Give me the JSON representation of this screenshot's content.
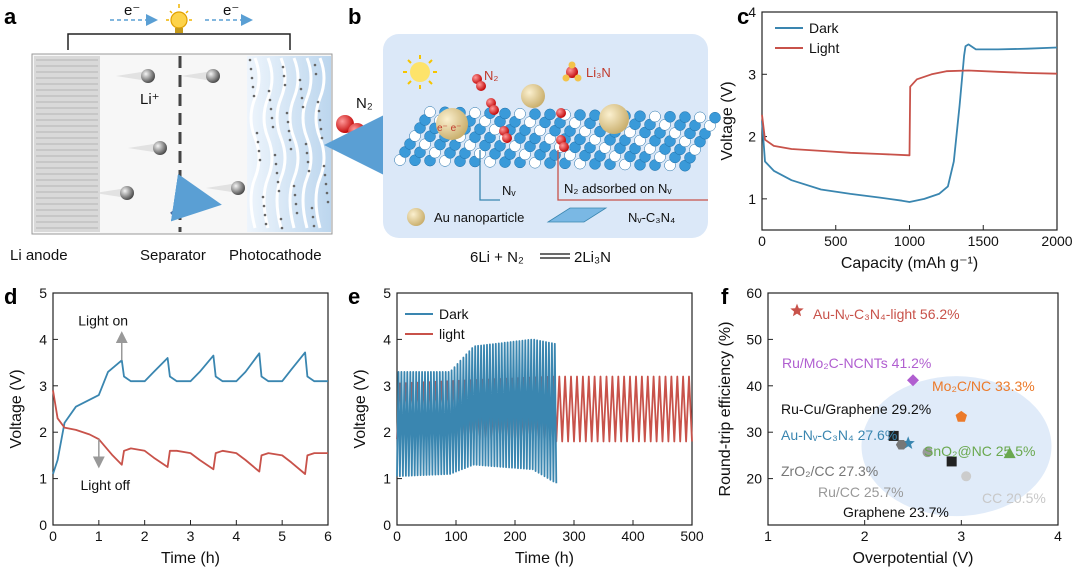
{
  "panels": {
    "a": {
      "letter": "a",
      "electron_left": "e⁻",
      "electron_right": "e⁻",
      "li_ion": "Li⁺",
      "gas": "N₂",
      "labels": [
        "Li anode",
        "Separator",
        "Photocathode"
      ]
    },
    "b": {
      "letter": "b",
      "n2_label": "N₂",
      "li3n_label": "Li₃N",
      "electrons": "e⁻ e⁻",
      "nv_label": "Nᵥ",
      "adsorbed_label": "N₂ adsorbed on Nᵥ",
      "legend_au": "Au nanoparticle",
      "legend_c3n4": "Nᵥ-C₃N₄",
      "equation_left": "6Li + N₂",
      "equation_right": "2Li₃N"
    },
    "c": {
      "letter": "c"
    },
    "d": {
      "letter": "d",
      "ann_on": "Light on",
      "ann_off": "Light off"
    },
    "e": {
      "letter": "e"
    },
    "f": {
      "letter": "f"
    }
  },
  "colors": {
    "dark": "#3a86b0",
    "light": "#c8524a",
    "halo": "#dbe8f8"
  },
  "chart_data": [
    {
      "id": "c",
      "type": "line",
      "xlabel": "Capacity (mAh g⁻¹)",
      "ylabel": "Voltage (V)",
      "xlim": [
        0,
        2000
      ],
      "ylim": [
        0.5,
        4
      ],
      "xticks": [
        0,
        500,
        1000,
        1500,
        2000
      ],
      "yticks": [
        1,
        2,
        3,
        4
      ],
      "legend": "top-left",
      "series": [
        {
          "name": "Dark",
          "color": "#3a86b0",
          "points": [
            [
              0,
              2.25
            ],
            [
              20,
              1.6
            ],
            [
              80,
              1.45
            ],
            [
              200,
              1.3
            ],
            [
              400,
              1.15
            ],
            [
              600,
              1.08
            ],
            [
              800,
              1.02
            ],
            [
              950,
              0.97
            ],
            [
              1000,
              0.95
            ],
            [
              1100,
              1.0
            ],
            [
              1200,
              1.08
            ],
            [
              1260,
              1.2
            ],
            [
              1300,
              1.6
            ],
            [
              1340,
              2.5
            ],
            [
              1370,
              3.3
            ],
            [
              1380,
              3.45
            ],
            [
              1400,
              3.48
            ],
            [
              1450,
              3.4
            ],
            [
              1600,
              3.4
            ],
            [
              1800,
              3.41
            ],
            [
              2000,
              3.43
            ]
          ]
        },
        {
          "name": "Light",
          "color": "#c8524a",
          "points": [
            [
              0,
              2.35
            ],
            [
              20,
              1.95
            ],
            [
              80,
              1.85
            ],
            [
              200,
              1.8
            ],
            [
              400,
              1.77
            ],
            [
              600,
              1.74
            ],
            [
              800,
              1.72
            ],
            [
              1000,
              1.7
            ],
            [
              1005,
              2.8
            ],
            [
              1050,
              2.92
            ],
            [
              1150,
              3.0
            ],
            [
              1250,
              3.05
            ],
            [
              1400,
              3.06
            ],
            [
              1600,
              3.04
            ],
            [
              1800,
              3.02
            ],
            [
              2000,
              3.01
            ]
          ]
        }
      ]
    },
    {
      "id": "d",
      "type": "line",
      "xlabel": "Time (h)",
      "ylabel": "Voltage (V)",
      "xlim": [
        0,
        6
      ],
      "ylim": [
        0,
        5
      ],
      "xticks": [
        0,
        1,
        2,
        3,
        4,
        5,
        6
      ],
      "yticks": [
        0,
        1,
        2,
        3,
        4,
        5
      ],
      "series": [
        {
          "name": "Dark",
          "color": "#3a86b0",
          "points": [
            [
              0,
              1.1
            ],
            [
              0.1,
              1.4
            ],
            [
              0.25,
              2.2
            ],
            [
              0.5,
              2.55
            ],
            [
              0.8,
              2.7
            ],
            [
              1.0,
              2.8
            ],
            [
              1.2,
              3.3
            ],
            [
              1.5,
              3.55
            ],
            [
              1.55,
              3.2
            ],
            [
              1.7,
              3.1
            ],
            [
              2.0,
              3.1
            ],
            [
              2.2,
              3.3
            ],
            [
              2.5,
              3.6
            ],
            [
              2.55,
              3.2
            ],
            [
              2.7,
              3.1
            ],
            [
              3.0,
              3.1
            ],
            [
              3.2,
              3.3
            ],
            [
              3.5,
              3.65
            ],
            [
              3.55,
              3.2
            ],
            [
              3.7,
              3.1
            ],
            [
              4.0,
              3.1
            ],
            [
              4.2,
              3.3
            ],
            [
              4.5,
              3.7
            ],
            [
              4.55,
              3.2
            ],
            [
              4.7,
              3.1
            ],
            [
              5.0,
              3.1
            ],
            [
              5.2,
              3.35
            ],
            [
              5.5,
              3.72
            ],
            [
              5.55,
              3.2
            ],
            [
              5.7,
              3.1
            ],
            [
              6.0,
              3.1
            ]
          ]
        },
        {
          "name": "Light",
          "color": "#c8524a",
          "points": [
            [
              0,
              2.9
            ],
            [
              0.1,
              2.3
            ],
            [
              0.25,
              2.1
            ],
            [
              0.5,
              2.05
            ],
            [
              0.8,
              1.95
            ],
            [
              1.0,
              1.85
            ],
            [
              1.3,
              1.5
            ],
            [
              1.5,
              1.3
            ],
            [
              1.55,
              1.6
            ],
            [
              1.7,
              1.65
            ],
            [
              2.0,
              1.6
            ],
            [
              2.2,
              1.45
            ],
            [
              2.5,
              1.25
            ],
            [
              2.55,
              1.6
            ],
            [
              2.7,
              1.6
            ],
            [
              3.0,
              1.55
            ],
            [
              3.2,
              1.4
            ],
            [
              3.5,
              1.2
            ],
            [
              3.55,
              1.55
            ],
            [
              3.7,
              1.6
            ],
            [
              4.0,
              1.55
            ],
            [
              4.2,
              1.4
            ],
            [
              4.5,
              1.15
            ],
            [
              4.55,
              1.5
            ],
            [
              4.7,
              1.55
            ],
            [
              5.0,
              1.5
            ],
            [
              5.2,
              1.35
            ],
            [
              5.5,
              1.1
            ],
            [
              5.55,
              1.5
            ],
            [
              5.7,
              1.55
            ],
            [
              6.0,
              1.55
            ]
          ]
        }
      ],
      "annotations": [
        "Light on",
        "Light off"
      ]
    },
    {
      "id": "e",
      "type": "line",
      "xlabel": "Time (h)",
      "ylabel": "Voltage (V)",
      "xlim": [
        0,
        500
      ],
      "ylim": [
        0,
        5
      ],
      "xticks": [
        0,
        100,
        200,
        300,
        400,
        500
      ],
      "yticks": [
        0,
        1,
        2,
        3,
        4,
        5
      ],
      "legend": "top-left",
      "series": [
        {
          "name": "Dark",
          "color": "#3a86b0",
          "x_end": 270,
          "cycle_h": 5,
          "segments": [
            [
              0,
              1.05,
              3.3
            ],
            [
              90,
              1.1,
              3.3
            ],
            [
              130,
              1.3,
              3.85
            ],
            [
              230,
              1.2,
              4.0
            ],
            [
              270,
              0.9,
              3.9
            ]
          ]
        },
        {
          "name": "light",
          "color": "#c8524a",
          "x_end": 500,
          "cycle_h": 10,
          "segments": [
            [
              0,
              1.85,
              3.05
            ],
            [
              270,
              1.8,
              3.2
            ],
            [
              500,
              1.8,
              3.2
            ]
          ]
        }
      ]
    },
    {
      "id": "f",
      "type": "scatter",
      "xlabel": "Overpotential (V)",
      "ylabel": "Round-trip efficiency (%)",
      "xlim": [
        1,
        4
      ],
      "ylim": [
        10,
        60
      ],
      "xticks": [
        1,
        2,
        3,
        4
      ],
      "yticks": [
        20,
        30,
        40,
        50,
        60
      ],
      "points": [
        {
          "label": "Au-Nᵥ-C₃N₄-light 56.2%",
          "x": 1.3,
          "y": 56.2,
          "marker": "star",
          "color": "#c8524a"
        },
        {
          "label": "Ru/Mo₂C-NCNTs 41.2%",
          "x": 2.5,
          "y": 41.2,
          "marker": "diamond",
          "color": "#b05ed0"
        },
        {
          "label": "Mo₂C/NC 33.3%",
          "x": 3.0,
          "y": 33.3,
          "marker": "pentagon",
          "color": "#ec7a2a"
        },
        {
          "label": "Ru-Cu/Graphene 29.2%",
          "x": 2.3,
          "y": 29.2,
          "marker": "square",
          "color": "#222222"
        },
        {
          "label": "Au-Nᵥ-C₃N₄ 27.6%",
          "x": 2.45,
          "y": 27.6,
          "marker": "star",
          "color": "#3a86b0"
        },
        {
          "label": "SnO₂@NC 25.5%",
          "x": 3.5,
          "y": 25.5,
          "marker": "triangle",
          "color": "#6aa84f"
        },
        {
          "label": "ZrO₂/CC 27.3%",
          "x": 2.38,
          "y": 27.3,
          "marker": "hexagon",
          "color": "#777777"
        },
        {
          "label": "Ru/CC 25.7%",
          "x": 2.65,
          "y": 25.7,
          "marker": "circle",
          "color": "#999999"
        },
        {
          "label": "Graphene 23.7%",
          "x": 2.9,
          "y": 23.7,
          "marker": "square",
          "color": "#222222"
        },
        {
          "label": "CC 20.5%",
          "x": 3.05,
          "y": 20.5,
          "marker": "circle",
          "color": "#cccccc"
        }
      ]
    }
  ]
}
